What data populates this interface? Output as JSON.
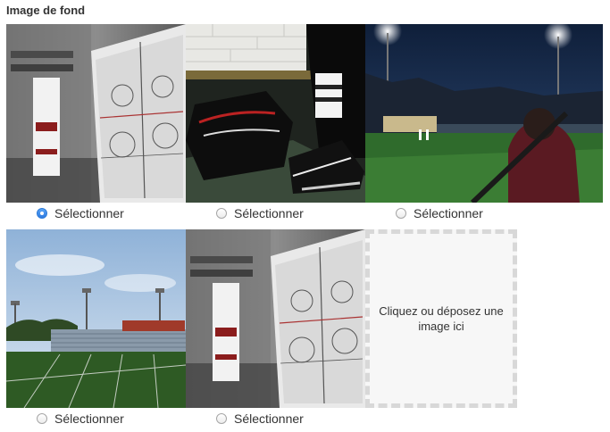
{
  "section": {
    "title": "Image de fond"
  },
  "images": [
    {
      "label": "Sélectionner",
      "selected": true,
      "subject": "locker-room-whiteboard"
    },
    {
      "label": "Sélectionner",
      "selected": false,
      "subject": "hockey-skates"
    },
    {
      "label": "Sélectionner",
      "selected": false,
      "subject": "baseball-field-night"
    },
    {
      "label": "Sélectionner",
      "selected": false,
      "subject": "football-stadium"
    },
    {
      "label": "Sélectionner",
      "selected": false,
      "subject": "locker-room-whiteboard"
    }
  ],
  "dropzone": {
    "text": "Cliquez ou déposez une image ici"
  },
  "colors": {
    "radio_selected": "#2d7ae0",
    "dropzone_border": "#d8d8d8",
    "dropzone_bg": "#f7f7f7"
  }
}
